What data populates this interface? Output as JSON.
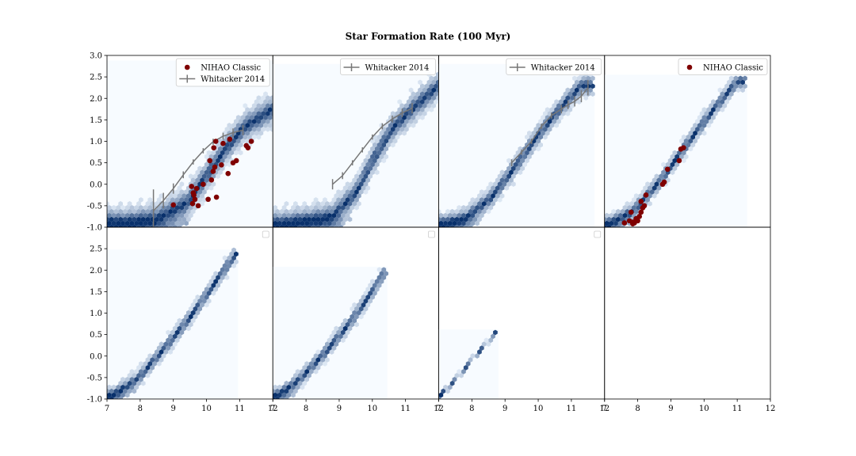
{
  "figure": {
    "title": "Star Formation Rate (100 Myr)"
  },
  "colors": {
    "hex_light": "#e8f1fb",
    "hex_dark": "#08306b",
    "hex_background": "#f7fbff",
    "nihao": "#7f0000",
    "whitacker": "#777777"
  },
  "chart_data": [
    {
      "type": "scatter",
      "row": 0,
      "col": 0,
      "xlim": [
        7,
        12
      ],
      "ylim": [
        -1.0,
        3.0
      ],
      "yticks": [
        "-1.0",
        "-0.5",
        "0.0",
        "0.5",
        "1.0",
        "1.5",
        "2.0",
        "2.5",
        "3.0"
      ],
      "xticks": [],
      "hexbin": {
        "x_range": [
          7.0,
          12.0
        ],
        "y_max": 2.88,
        "ridge": [
          [
            7.6,
            -0.9
          ],
          [
            8.5,
            -0.8
          ],
          [
            9.4,
            -0.45
          ],
          [
            10.0,
            0.2
          ],
          [
            10.6,
            0.85
          ],
          [
            11.1,
            1.3
          ],
          [
            11.6,
            1.55
          ],
          [
            12.0,
            1.75
          ]
        ],
        "spread": 0.32
      },
      "legend": {
        "position": "upper right",
        "entries": [
          "NIHAO Classic",
          "Whitacker 2014"
        ]
      },
      "series": [
        {
          "name": "Whitacker 2014",
          "kind": "line-errorbar",
          "x": [
            8.4,
            8.7,
            9.0,
            9.3,
            9.6,
            9.9,
            10.2,
            10.5,
            10.8,
            11.1
          ],
          "y": [
            -0.62,
            -0.38,
            -0.1,
            0.22,
            0.52,
            0.78,
            0.99,
            1.12,
            1.2,
            1.26
          ],
          "yerr": [
            0.5,
            0.18,
            0.12,
            0.08,
            0.06,
            0.06,
            0.07,
            0.08,
            0.1,
            0.12
          ]
        },
        {
          "name": "NIHAO Classic",
          "kind": "points",
          "x": [
            9.0,
            9.55,
            9.6,
            9.65,
            9.58,
            9.75,
            9.9,
            10.05,
            10.15,
            10.1,
            10.2,
            10.25,
            10.22,
            10.28,
            9.62,
            9.7,
            10.5,
            10.7,
            10.8,
            10.9,
            11.2,
            11.25,
            11.35,
            10.45,
            10.65,
            10.3
          ],
          "y": [
            -0.48,
            -0.05,
            -0.2,
            -0.35,
            -0.45,
            -0.5,
            0.0,
            -0.35,
            0.1,
            0.55,
            0.3,
            0.4,
            0.85,
            1.0,
            -0.25,
            -0.1,
            0.95,
            1.05,
            0.5,
            0.55,
            0.9,
            0.85,
            1.0,
            0.45,
            0.25,
            -0.3
          ]
        }
      ]
    },
    {
      "type": "scatter",
      "row": 0,
      "col": 1,
      "xlim": [
        7,
        12
      ],
      "ylim": [
        -1.0,
        3.0
      ],
      "yticks": [],
      "xticks": [],
      "hexbin": {
        "x_range": [
          7.0,
          12.0
        ],
        "y_max": 2.8,
        "ridge": [
          [
            7.2,
            -0.95
          ],
          [
            8.0,
            -0.85
          ],
          [
            8.8,
            -0.75
          ],
          [
            9.5,
            -0.2
          ],
          [
            10.0,
            0.55
          ],
          [
            10.6,
            1.3
          ],
          [
            11.2,
            1.75
          ],
          [
            12.0,
            2.3
          ]
        ],
        "spread": 0.3
      },
      "legend": {
        "position": "upper right",
        "entries": [
          "Whitacker 2014"
        ]
      },
      "series": [
        {
          "name": "Whitacker 2014",
          "kind": "line-errorbar",
          "x": [
            8.8,
            9.1,
            9.4,
            9.7,
            10.0,
            10.3,
            10.6,
            10.9,
            11.2
          ],
          "y": [
            0.0,
            0.2,
            0.5,
            0.8,
            1.1,
            1.35,
            1.52,
            1.66,
            1.77
          ],
          "yerr": [
            0.12,
            0.08,
            0.06,
            0.06,
            0.06,
            0.07,
            0.08,
            0.1,
            0.12
          ]
        }
      ]
    },
    {
      "type": "scatter",
      "row": 0,
      "col": 2,
      "xlim": [
        7,
        12
      ],
      "ylim": [
        -1.0,
        3.0
      ],
      "yticks": [],
      "xticks": [],
      "hexbin": {
        "x_range": [
          7.0,
          11.7
        ],
        "y_max": 2.8,
        "ridge": [
          [
            7.1,
            -0.95
          ],
          [
            7.8,
            -0.8
          ],
          [
            8.6,
            -0.3
          ],
          [
            9.3,
            0.4
          ],
          [
            10.0,
            1.15
          ],
          [
            10.7,
            1.8
          ],
          [
            11.3,
            2.3
          ]
        ],
        "spread": 0.22
      },
      "legend": {
        "position": "upper right",
        "entries": [
          "Whitacker 2014"
        ]
      },
      "series": [
        {
          "name": "Whitacker 2014",
          "kind": "line-errorbar",
          "x": [
            9.2,
            9.5,
            9.8,
            10.1,
            10.4,
            10.7,
            10.9,
            11.1,
            11.3,
            11.5
          ],
          "y": [
            0.5,
            0.75,
            1.0,
            1.35,
            1.6,
            1.75,
            1.85,
            1.93,
            2.05,
            2.25
          ],
          "yerr": [
            0.08,
            0.06,
            0.06,
            0.06,
            0.07,
            0.1,
            0.1,
            0.12,
            0.14,
            0.18
          ]
        }
      ]
    },
    {
      "type": "scatter",
      "row": 0,
      "col": 3,
      "xlim": [
        7,
        12
      ],
      "ylim": [
        -1.0,
        3.0
      ],
      "yticks": [],
      "xticks": [],
      "hexbin": {
        "x_range": [
          7.0,
          11.3
        ],
        "y_max": 2.55,
        "ridge": [
          [
            7.1,
            -0.95
          ],
          [
            7.9,
            -0.6
          ],
          [
            8.7,
            0.1
          ],
          [
            9.5,
            0.95
          ],
          [
            10.3,
            1.75
          ],
          [
            11.0,
            2.4
          ]
        ],
        "spread": 0.18
      },
      "legend": {
        "position": "upper right",
        "entries": [
          "NIHAO Classic"
        ]
      },
      "series": [
        {
          "name": "NIHAO Classic",
          "kind": "points",
          "x": [
            7.6,
            7.75,
            7.8,
            7.85,
            7.9,
            7.95,
            8.0,
            8.05,
            8.1,
            8.15,
            8.2,
            8.25,
            8.1,
            7.85,
            8.8,
            8.75,
            8.9,
            9.25,
            9.3,
            9.38
          ],
          "y": [
            -0.9,
            -0.85,
            -0.65,
            -0.92,
            -0.9,
            -0.8,
            -0.85,
            -0.75,
            -0.4,
            -0.55,
            -0.5,
            -0.25,
            -0.65,
            -0.88,
            0.05,
            0.0,
            0.35,
            0.55,
            0.82,
            0.85
          ]
        }
      ]
    },
    {
      "type": "scatter",
      "row": 1,
      "col": 0,
      "xlim": [
        7,
        12
      ],
      "ylim": [
        -1.0,
        3.0
      ],
      "yticks": [
        "-1.0",
        "-0.5",
        "0.0",
        "0.5",
        "1.0",
        "1.5",
        "2.0",
        "2.5"
      ],
      "xticks": [
        "7",
        "8",
        "9",
        "10",
        "11",
        "12"
      ],
      "hexbin": {
        "x_range": [
          7.0,
          10.95
        ],
        "y_max": 2.48,
        "ridge": [
          [
            7.1,
            -0.95
          ],
          [
            7.9,
            -0.55
          ],
          [
            8.7,
            0.15
          ],
          [
            9.5,
            0.9
          ],
          [
            10.3,
            1.75
          ],
          [
            10.9,
            2.4
          ]
        ],
        "spread": 0.17
      },
      "legend": {
        "position": "upper right",
        "entries": []
      },
      "series": []
    },
    {
      "type": "scatter",
      "row": 1,
      "col": 1,
      "xlim": [
        7,
        12
      ],
      "ylim": [
        -1.0,
        3.0
      ],
      "yticks": [],
      "xticks": [
        "7",
        "8",
        "9",
        "10",
        "11",
        "12"
      ],
      "hexbin": {
        "x_range": [
          7.0,
          10.45
        ],
        "y_max": 2.08,
        "ridge": [
          [
            7.1,
            -0.95
          ],
          [
            7.8,
            -0.55
          ],
          [
            8.6,
            0.1
          ],
          [
            9.3,
            0.75
          ],
          [
            10.0,
            1.5
          ],
          [
            10.4,
            2.0
          ]
        ],
        "spread": 0.17
      },
      "legend": {
        "position": "upper right",
        "entries": []
      },
      "series": []
    },
    {
      "type": "scatter",
      "row": 1,
      "col": 2,
      "xlim": [
        7,
        12
      ],
      "ylim": [
        -1.0,
        3.0
      ],
      "yticks": [],
      "xticks": [
        "7",
        "8",
        "9",
        "10",
        "11",
        "12"
      ],
      "hexbin": {
        "x_range": [
          7.0,
          8.8
        ],
        "y_max": 0.62,
        "ridge": [
          [
            7.0,
            -0.95
          ],
          [
            7.5,
            -0.55
          ],
          [
            8.0,
            -0.1
          ],
          [
            8.5,
            0.35
          ],
          [
            8.75,
            0.6
          ]
        ],
        "spread": 0.06
      },
      "legend": {
        "position": "upper right",
        "entries": []
      },
      "series": []
    },
    {
      "type": "scatter",
      "row": 1,
      "col": 3,
      "xlim": [
        7,
        12
      ],
      "ylim": [
        -1.0,
        3.0
      ],
      "yticks": [],
      "xticks": [
        "7",
        "8",
        "9",
        "10",
        "11",
        "12"
      ],
      "hexbin": null,
      "legend": {
        "position": "none",
        "entries": []
      },
      "series": []
    }
  ]
}
